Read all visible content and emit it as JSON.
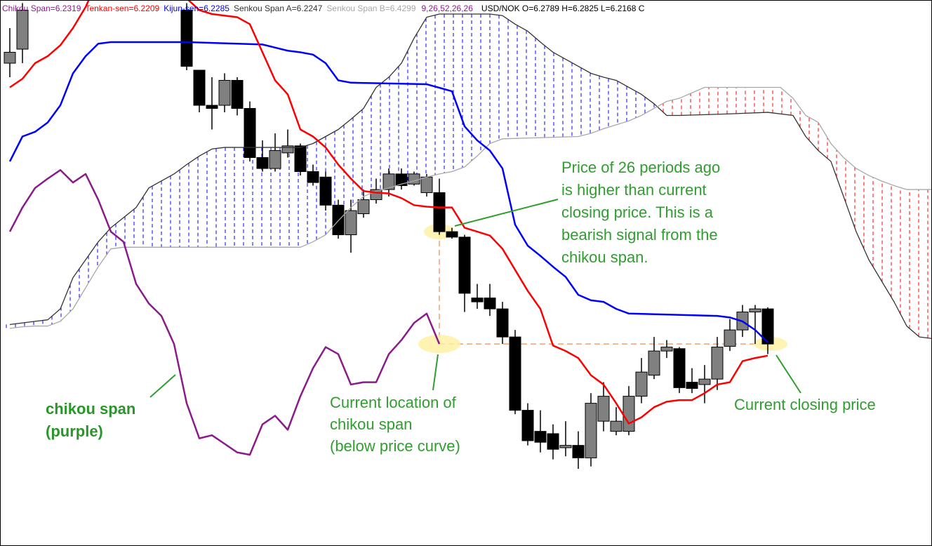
{
  "chart_data": {
    "type": "candlestick",
    "ylim": [
      5.97,
      6.67
    ],
    "x": [
      0,
      1,
      14,
      15,
      16,
      17,
      18,
      19,
      20,
      21,
      22,
      23,
      24,
      25,
      26,
      27,
      28,
      29,
      30,
      31,
      32,
      33,
      34,
      35,
      36,
      37,
      38,
      39,
      40,
      41,
      42,
      43,
      44,
      45,
      46,
      47,
      48,
      49,
      50,
      51,
      52,
      53,
      54,
      55,
      56,
      57,
      58,
      59,
      60
    ],
    "open": [
      6.589,
      6.607,
      6.657,
      6.58,
      6.535,
      6.535,
      6.567,
      6.531,
      6.468,
      6.454,
      6.474,
      6.483,
      6.45,
      6.443,
      6.407,
      6.369,
      6.396,
      6.414,
      6.427,
      6.447,
      6.434,
      6.423,
      6.423,
      6.373,
      6.366,
      6.288,
      6.288,
      6.274,
      6.238,
      6.144,
      6.117,
      6.114,
      6.096,
      6.099,
      6.083,
      6.13,
      6.117,
      6.117,
      6.162,
      6.189,
      6.22,
      6.223,
      6.18,
      6.177,
      6.184,
      6.226,
      6.247,
      6.27,
      6.274
    ],
    "high": [
      6.634,
      6.666,
      6.666,
      6.58,
      6.571,
      6.576,
      6.571,
      6.54,
      6.49,
      6.499,
      6.504,
      6.486,
      6.459,
      6.45,
      6.414,
      6.414,
      6.427,
      6.441,
      6.454,
      6.454,
      6.45,
      6.447,
      6.441,
      6.378,
      6.369,
      6.306,
      6.306,
      6.283,
      6.247,
      6.153,
      6.144,
      6.126,
      6.13,
      6.117,
      6.166,
      6.18,
      6.148,
      6.175,
      6.211,
      6.238,
      6.234,
      6.225,
      6.198,
      6.202,
      6.238,
      6.261,
      6.279,
      6.279,
      6.276
    ],
    "low": [
      6.571,
      6.589,
      6.58,
      6.526,
      6.504,
      6.526,
      6.522,
      6.463,
      6.45,
      6.45,
      6.468,
      6.445,
      6.432,
      6.4,
      6.364,
      6.346,
      6.391,
      6.409,
      6.418,
      6.427,
      6.432,
      6.418,
      6.369,
      6.364,
      6.27,
      6.274,
      6.265,
      6.229,
      6.139,
      6.099,
      6.09,
      6.081,
      6.085,
      6.069,
      6.072,
      6.117,
      6.112,
      6.112,
      6.153,
      6.184,
      6.211,
      6.166,
      6.166,
      6.153,
      6.17,
      6.22,
      6.238,
      6.229,
      6.216
    ],
    "close": [
      6.603,
      6.657,
      6.585,
      6.535,
      6.531,
      6.567,
      6.531,
      6.468,
      6.454,
      6.477,
      6.483,
      6.45,
      6.436,
      6.407,
      6.369,
      6.4,
      6.414,
      6.427,
      6.447,
      6.432,
      6.447,
      6.443,
      6.373,
      6.366,
      6.294,
      6.283,
      6.274,
      6.238,
      6.144,
      6.105,
      6.103,
      6.094,
      6.099,
      6.083,
      6.153,
      6.162,
      6.13,
      6.162,
      6.193,
      6.22,
      6.225,
      6.173,
      6.172,
      6.184,
      6.225,
      6.247,
      6.27,
      6.274,
      6.229
    ],
    "up_color": "#808080",
    "down_color": "#000000",
    "series": [
      {
        "name": "Chikou Span=6.2319",
        "color": "#8b1a8b",
        "x": [
          0,
          1,
          2,
          3,
          4,
          5,
          6,
          7,
          8,
          9,
          10,
          11,
          12,
          13,
          14,
          15,
          16,
          17,
          18,
          19,
          20,
          21,
          22,
          23,
          24,
          25,
          26,
          27,
          28,
          29,
          30,
          31,
          32,
          33,
          34
        ],
        "values": [
          6.373,
          6.404,
          6.429,
          6.441,
          6.452,
          6.436,
          6.447,
          6.414,
          6.373,
          6.36,
          6.306,
          6.281,
          6.265,
          6.229,
          6.153,
          6.108,
          6.112,
          6.101,
          6.09,
          6.087,
          6.126,
          6.137,
          6.119,
          6.162,
          6.198,
          6.225,
          6.216,
          6.177,
          6.18,
          6.18,
          6.216,
          6.234,
          6.256,
          6.268,
          6.229
        ]
      },
      {
        "name": "Tenkan-sen=6.2209",
        "color": "#ff0000",
        "x": [
          0,
          1,
          2,
          3,
          4,
          5,
          6,
          7,
          13,
          14,
          15,
          16,
          17,
          18,
          19,
          20,
          21,
          22,
          23,
          24,
          25,
          26,
          27,
          28,
          29,
          30,
          31,
          32,
          33,
          34,
          35,
          36,
          37,
          38,
          39,
          40,
          41,
          42,
          43,
          44,
          45,
          46,
          47,
          48,
          49,
          50,
          51,
          52,
          53,
          54,
          55,
          56,
          57,
          58,
          59,
          60
        ],
        "values": [
          6.558,
          6.569,
          6.589,
          6.598,
          6.612,
          6.634,
          6.661,
          6.697,
          6.697,
          6.672,
          6.657,
          6.652,
          6.65,
          6.648,
          6.639,
          6.603,
          6.567,
          6.549,
          6.504,
          6.495,
          6.481,
          6.459,
          6.441,
          6.425,
          6.423,
          6.422,
          6.416,
          6.407,
          6.405,
          6.404,
          6.404,
          6.378,
          6.373,
          6.368,
          6.351,
          6.324,
          6.297,
          6.274,
          6.227,
          6.22,
          6.211,
          6.189,
          6.177,
          6.153,
          6.127,
          6.135,
          6.148,
          6.155,
          6.157,
          6.157,
          6.166,
          6.177,
          6.18,
          6.207,
          6.211,
          6.214
        ]
      },
      {
        "name": "Kijun-sen=6.2285",
        "color": "#0000ff",
        "x": [
          0,
          1,
          2,
          3,
          4,
          5,
          6,
          7,
          8,
          14,
          20,
          21,
          22,
          23,
          24,
          25,
          26,
          27,
          33,
          35,
          36,
          37,
          38,
          39,
          40,
          41,
          42,
          43,
          44,
          45,
          46,
          47,
          48,
          49,
          56,
          57,
          58,
          59,
          60
        ],
        "values": [
          6.463,
          6.495,
          6.501,
          6.513,
          6.535,
          6.576,
          6.598,
          6.614,
          6.616,
          6.616,
          6.613,
          6.609,
          6.605,
          6.603,
          6.6,
          6.589,
          6.567,
          6.564,
          6.562,
          6.553,
          6.508,
          6.49,
          6.477,
          6.454,
          6.382,
          6.355,
          6.342,
          6.328,
          6.315,
          6.292,
          6.285,
          6.283,
          6.274,
          6.268,
          6.265,
          6.263,
          6.258,
          6.247,
          6.231
        ]
      },
      {
        "name": "Senkou Span A=6.2247",
        "color": "#333333",
        "x": [
          0,
          1,
          2,
          3,
          4,
          5,
          6,
          7,
          8,
          9,
          10,
          11,
          12,
          13,
          14,
          15,
          16,
          17,
          23,
          24,
          25,
          26,
          27,
          28,
          29,
          30,
          31,
          32,
          33,
          34,
          38,
          39,
          40,
          41,
          42,
          43,
          44,
          45,
          46,
          47,
          48,
          49,
          50,
          51,
          52,
          53,
          57,
          60,
          62,
          63,
          64,
          65,
          66,
          67,
          68,
          69,
          70,
          71,
          72,
          73
        ],
        "values": [
          6.254,
          6.256,
          6.258,
          6.26,
          6.274,
          6.314,
          6.337,
          6.36,
          6.378,
          6.391,
          6.404,
          6.429,
          6.438,
          6.447,
          6.459,
          6.47,
          6.479,
          6.481,
          6.481,
          6.486,
          6.495,
          6.504,
          6.517,
          6.531,
          6.558,
          6.571,
          6.589,
          6.621,
          6.648,
          6.652,
          6.652,
          6.65,
          6.639,
          6.63,
          6.616,
          6.603,
          6.594,
          6.585,
          6.576,
          6.571,
          6.567,
          6.558,
          6.549,
          6.537,
          6.522,
          6.522,
          6.524,
          6.526,
          6.522,
          6.495,
          6.477,
          6.463,
          6.418,
          6.373,
          6.337,
          6.31,
          6.283,
          6.252,
          6.238,
          6.236
        ]
      },
      {
        "name": "Senkou Span B=6.4299",
        "color": "#a8a8a8",
        "x": [
          0,
          1,
          2,
          3,
          4,
          5,
          6,
          7,
          8,
          9,
          23,
          24,
          25,
          26,
          27,
          28,
          29,
          30,
          31,
          32,
          33,
          34,
          35,
          36,
          37,
          38,
          39,
          45,
          46,
          47,
          48,
          49,
          50,
          51,
          52,
          53,
          54,
          55,
          61,
          62,
          63,
          64,
          65,
          66,
          67,
          68,
          69,
          70,
          71,
          72,
          73
        ],
        "values": [
          6.249,
          6.251,
          6.252,
          6.252,
          6.258,
          6.274,
          6.301,
          6.328,
          6.351,
          6.353,
          6.353,
          6.36,
          6.369,
          6.387,
          6.404,
          6.418,
          6.425,
          6.429,
          6.434,
          6.438,
          6.443,
          6.447,
          6.45,
          6.456,
          6.47,
          6.486,
          6.492,
          6.495,
          6.499,
          6.505,
          6.51,
          6.515,
          6.522,
          6.531,
          6.54,
          6.544,
          6.551,
          6.558,
          6.558,
          6.544,
          6.522,
          6.513,
          6.486,
          6.468,
          6.454,
          6.445,
          6.438,
          6.432,
          6.427,
          6.427,
          6.427
        ]
      }
    ],
    "cloud_up_color": "#0000ff",
    "cloud_down_color": "#ff0000",
    "parameters": {
      "text": "9,26,52,26,26",
      "color": "#8b1a8b"
    },
    "symbol": {
      "text": "USD/NOK O=6.2789 H=6.2825 L=6.2168 C",
      "color": "#000000"
    },
    "annotations": [
      {
        "lines": [
          "Price of 26 periods ago",
          "is higher than current",
          "closing price.  This is a",
          "bearish signal from the",
          "chikou span."
        ]
      },
      {
        "lines": [
          "Current location of",
          "chikou span",
          "(below price curve)"
        ]
      },
      {
        "lines": [
          "Current closing price"
        ]
      },
      {
        "lines": [
          "chikou span",
          "(purple)"
        ]
      }
    ]
  }
}
